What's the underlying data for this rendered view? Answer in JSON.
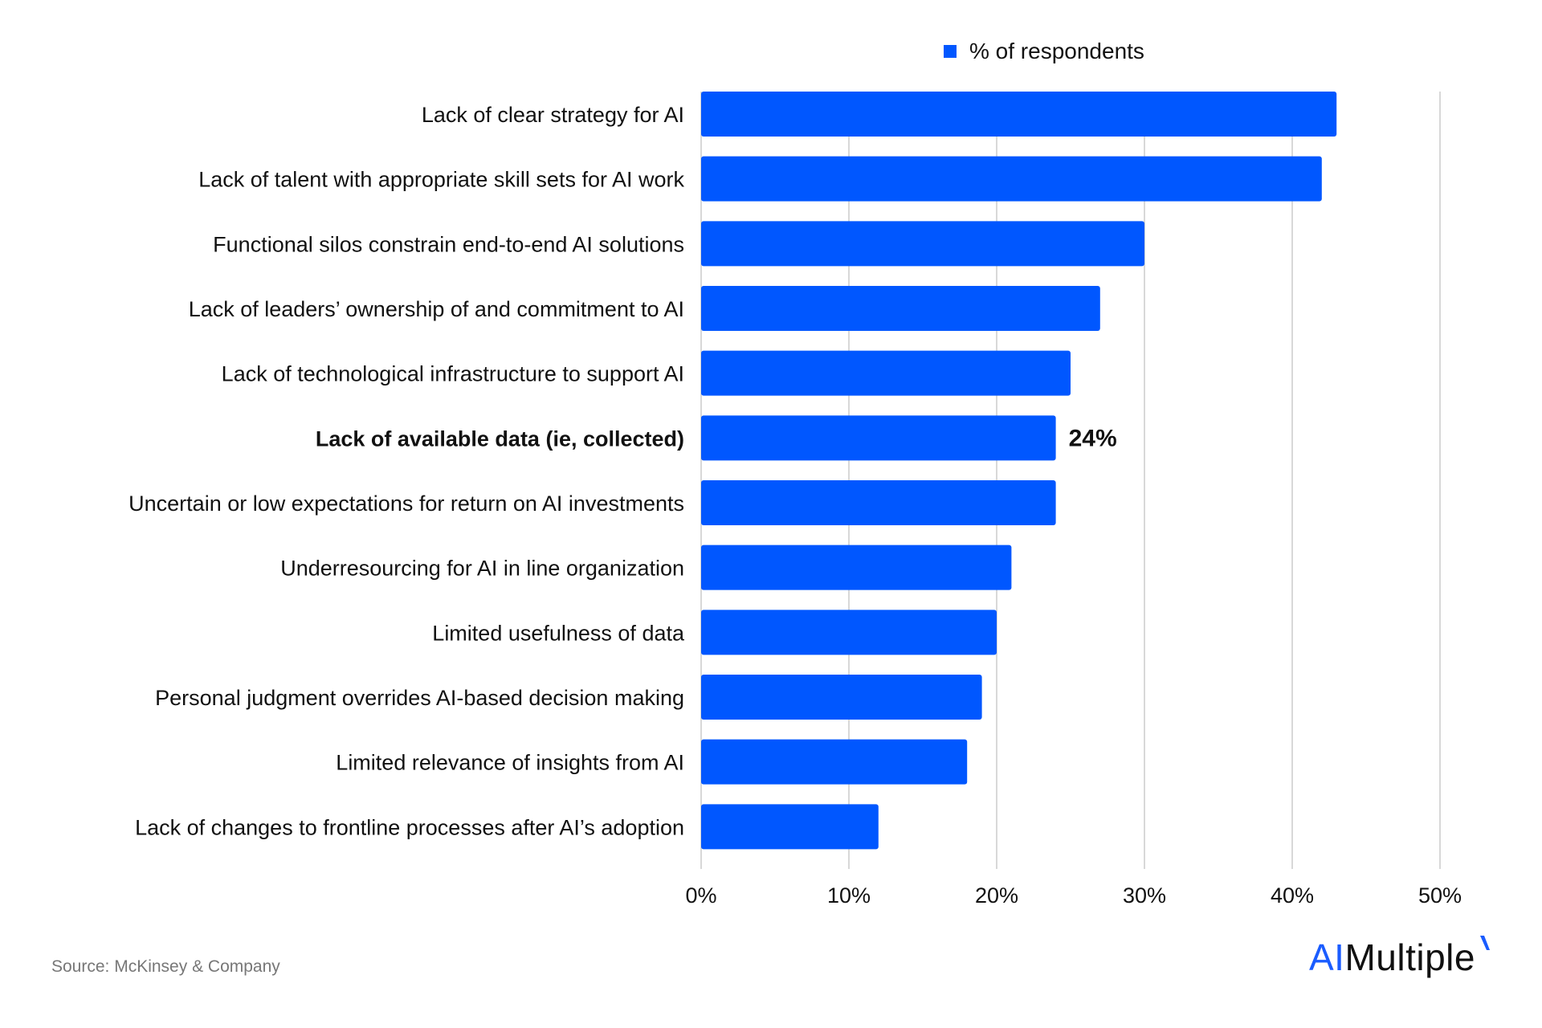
{
  "chart_data": {
    "type": "bar",
    "orientation": "horizontal",
    "categories": [
      "Lack of clear strategy for AI",
      "Lack of talent with appropriate skill sets for AI work",
      "Functional silos constrain end-to-end AI solutions",
      "Lack of leaders’ ownership of and commitment to AI",
      "Lack of technological infrastructure to support AI",
      "Lack of available data (ie, collected)",
      "Uncertain or low expectations for return on AI investments",
      "Underresourcing for AI in line organization",
      "Limited usefulness of data",
      "Personal judgment overrides AI-based decision making",
      "Limited relevance of insights from AI",
      "Lack of changes to frontline processes after AI’s adoption"
    ],
    "series": [
      {
        "name": "% of respondents",
        "values": [
          43,
          42,
          30,
          27,
          25,
          24,
          24,
          21,
          20,
          19,
          18,
          12
        ]
      }
    ],
    "highlighted_index": 5,
    "highlight_label": "24%",
    "xlim": [
      0,
      50
    ],
    "xticks": [
      "0%",
      "10%",
      "20%",
      "30%",
      "40%",
      "50%"
    ],
    "xtick_values": [
      0,
      10,
      20,
      30,
      40,
      50
    ],
    "grid": "vertical",
    "legend_placement": "top",
    "bar_color": "#0057ff",
    "grid_color": "#cccccc"
  },
  "legend": {
    "label": "% of respondents"
  },
  "source": "Source: McKinsey & Company",
  "logo": {
    "text_ai": "AI",
    "text_rest": "Multiple",
    "ai_color": "#1a5cff"
  }
}
